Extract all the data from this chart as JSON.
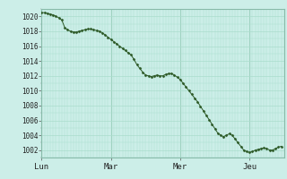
{
  "title": "",
  "ylabel": "",
  "xlabel": "",
  "bg_color": "#cceee8",
  "grid_color": "#aaddcc",
  "line_color": "#2d5a27",
  "marker_color": "#2d5a27",
  "ylim": [
    1001,
    1021
  ],
  "yticks": [
    1002,
    1004,
    1006,
    1008,
    1010,
    1012,
    1014,
    1016,
    1018,
    1020
  ],
  "day_labels": [
    "Lun",
    "Mar",
    "Mer",
    "Jeu"
  ],
  "day_positions": [
    0,
    24,
    48,
    72
  ],
  "total_hours": 84,
  "pressure_values": [
    1020.5,
    1020.5,
    1020.4,
    1020.3,
    1020.2,
    1020.0,
    1019.8,
    1019.5,
    1018.5,
    1018.2,
    1018.0,
    1017.9,
    1017.9,
    1018.0,
    1018.1,
    1018.2,
    1018.3,
    1018.3,
    1018.2,
    1018.1,
    1018.0,
    1017.8,
    1017.5,
    1017.2,
    1016.9,
    1016.6,
    1016.3,
    1016.0,
    1015.7,
    1015.4,
    1015.1,
    1014.8,
    1014.2,
    1013.5,
    1013.0,
    1012.5,
    1012.1,
    1012.0,
    1011.9,
    1012.0,
    1012.1,
    1012.0,
    1012.0,
    1012.2,
    1012.3,
    1012.3,
    1012.1,
    1011.8,
    1011.5,
    1011.0,
    1010.5,
    1010.0,
    1009.5,
    1009.0,
    1008.5,
    1007.9,
    1007.3,
    1006.7,
    1006.1,
    1005.5,
    1004.9,
    1004.3,
    1004.0,
    1003.8,
    1004.0,
    1004.2,
    1004.0,
    1003.5,
    1003.0,
    1002.5,
    1002.0,
    1001.8,
    1001.7,
    1001.8,
    1002.0,
    1002.1,
    1002.2,
    1002.3,
    1002.2,
    1002.0,
    1002.0,
    1002.2,
    1002.4,
    1002.5
  ]
}
